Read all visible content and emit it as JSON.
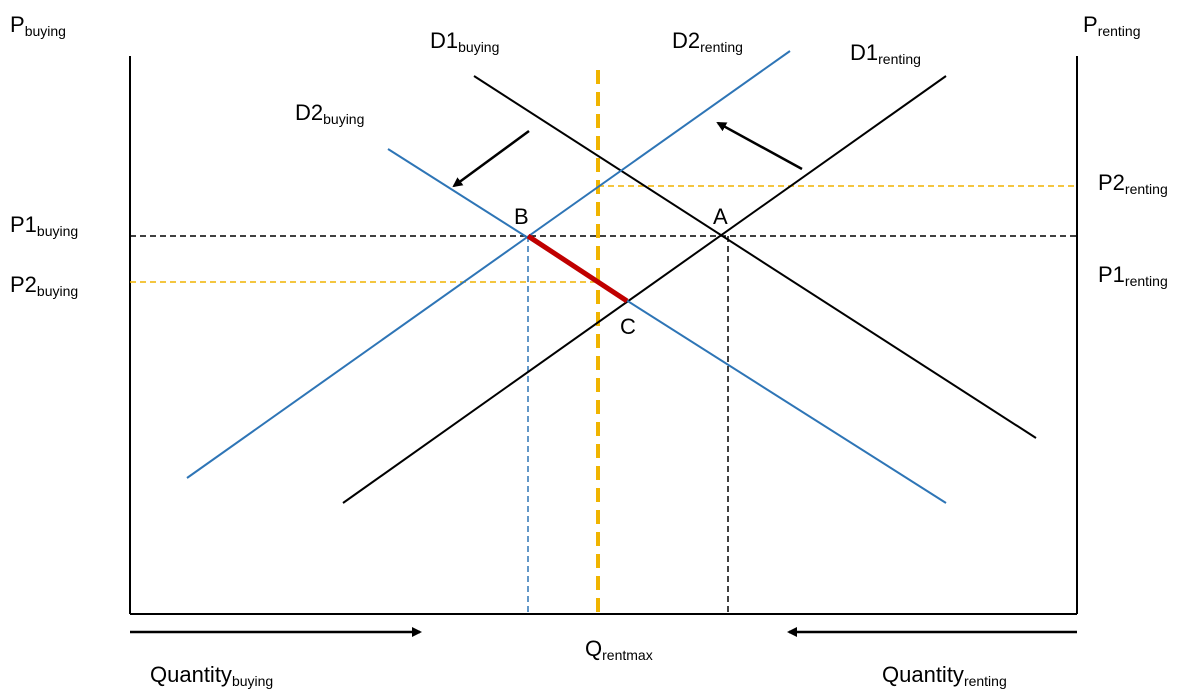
{
  "axes": {
    "left_price": {
      "main": "P",
      "sub": "buying"
    },
    "right_price": {
      "main": "P",
      "sub": "renting"
    },
    "bottom_left": {
      "main": "Quantity",
      "sub": "buying"
    },
    "bottom_right": {
      "main": "Quantity",
      "sub": "renting"
    },
    "bottom_center": {
      "main": "Q",
      "sub": "rentmax"
    }
  },
  "curves": {
    "d1_buying": {
      "main": "D1",
      "sub": "buying"
    },
    "d2_buying": {
      "main": "D2",
      "sub": "buying"
    },
    "d1_renting": {
      "main": "D1",
      "sub": "renting"
    },
    "d2_renting": {
      "main": "D2",
      "sub": "renting"
    }
  },
  "price_levels": {
    "p1_buying": {
      "main": "P1",
      "sub": "buying"
    },
    "p2_buying": {
      "main": "P2",
      "sub": "buying"
    },
    "p1_renting": {
      "main": "P1",
      "sub": "renting"
    },
    "p2_renting": {
      "main": "P2",
      "sub": "renting"
    }
  },
  "points": {
    "a": "A",
    "b": "B",
    "c": "C"
  },
  "colors": {
    "black_curve": "#000000",
    "blue_curve": "#2e75b6",
    "rent_cap": "#f0b400",
    "segment_bc": "#c00000"
  }
}
